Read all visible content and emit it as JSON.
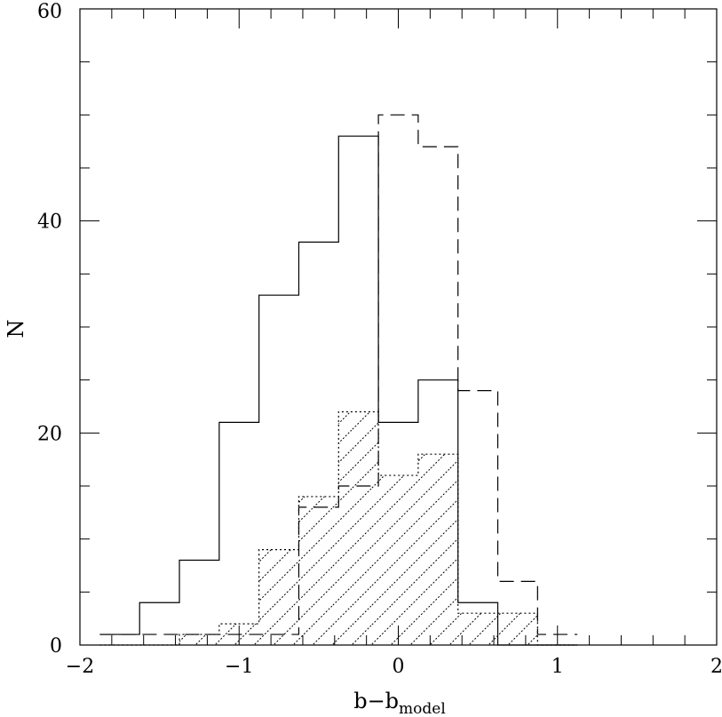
{
  "chart_data": {
    "type": "histogram",
    "bin_edges": [
      -1.875,
      -1.625,
      -1.375,
      -1.125,
      -0.875,
      -0.625,
      -0.375,
      -0.125,
      0.125,
      0.375,
      0.625,
      0.875,
      1.125
    ],
    "series": [
      {
        "style": "solid",
        "counts": [
          1,
          4,
          8,
          21,
          33,
          38,
          48,
          21,
          25,
          4,
          0,
          0
        ]
      },
      {
        "style": "dashed",
        "counts": [
          1,
          1,
          1,
          1,
          1,
          13,
          15,
          50,
          47,
          24,
          6,
          1
        ]
      },
      {
        "style": "dotted-hatched",
        "counts": [
          0,
          0,
          1,
          2,
          9,
          14,
          22,
          16,
          18,
          3,
          3,
          0
        ]
      }
    ],
    "xlim": [
      -2,
      2
    ],
    "ylim": [
      0,
      60
    ],
    "x_ticks": [
      "−2",
      "−1",
      "0",
      "1",
      "2"
    ],
    "y_ticks": [
      "0",
      "20",
      "40",
      "60"
    ],
    "xlabel_main": "b−b",
    "xlabel_sub": "model",
    "ylabel": "N"
  }
}
